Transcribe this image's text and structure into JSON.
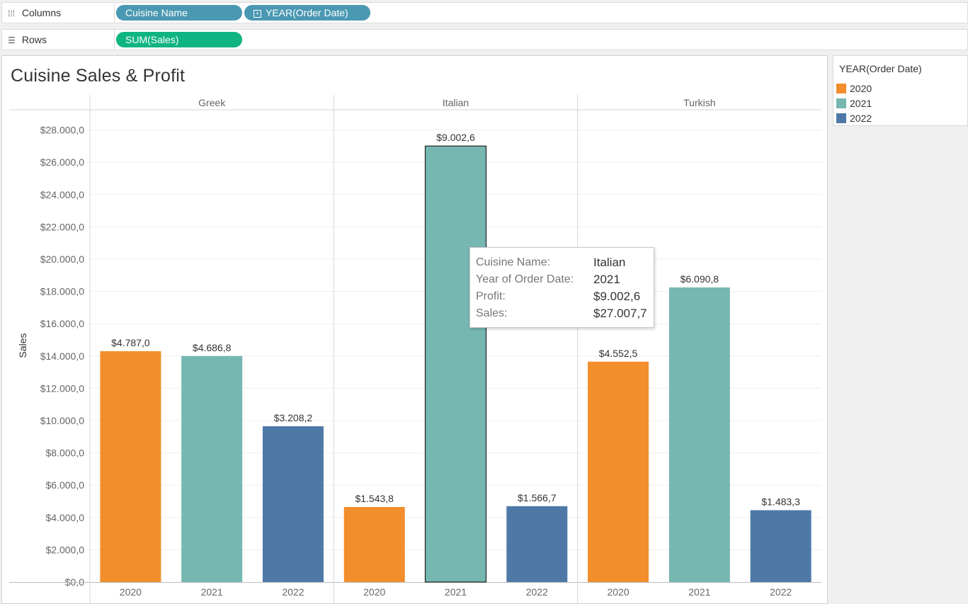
{
  "shelves": {
    "columns": {
      "label": "Columns",
      "pills": [
        {
          "label": "Cuisine Name",
          "color": "#4a98b2"
        },
        {
          "label": "YEAR(Order Date)",
          "color": "#4a98b2",
          "expandable": true
        }
      ]
    },
    "rows": {
      "label": "Rows",
      "pills": [
        {
          "label": "SUM(Sales)",
          "color": "#0fb482"
        }
      ]
    }
  },
  "chart_data": {
    "type": "bar",
    "title": "Cuisine Sales & Profit",
    "ylabel": "Sales",
    "xlabel": "",
    "ylim": [
      0,
      30000
    ],
    "y_ticks": [
      "$0,0",
      "$2.000,0",
      "$4.000,0",
      "$6.000,0",
      "$8.000,0",
      "$10.000,0",
      "$12.000,0",
      "$14.000,0",
      "$16.000,0",
      "$18.000,0",
      "$20.000,0",
      "$22.000,0",
      "$24.000,0",
      "$26.000,0",
      "$28.000,0"
    ],
    "y_tick_values": [
      0,
      2000,
      4000,
      6000,
      8000,
      10000,
      12000,
      14000,
      16000,
      18000,
      20000,
      22000,
      24000,
      26000,
      28000
    ],
    "grid": true,
    "legend_position": "right",
    "panes": [
      {
        "name": "Greek",
        "bars": [
          {
            "year": "2020",
            "sales": 14300,
            "label": "$4.787,0"
          },
          {
            "year": "2021",
            "sales": 14000,
            "label": "$4.686,8"
          },
          {
            "year": "2022",
            "sales": 9650,
            "label": "$3.208,2"
          }
        ]
      },
      {
        "name": "Italian",
        "bars": [
          {
            "year": "2020",
            "sales": 4650,
            "label": "$1.543,8"
          },
          {
            "year": "2021",
            "sales": 27007.7,
            "label": "$9.002,6",
            "selected": true
          },
          {
            "year": "2022",
            "sales": 4700,
            "label": "$1.566,7"
          }
        ]
      },
      {
        "name": "Turkish",
        "bars": [
          {
            "year": "2020",
            "sales": 13650,
            "label": "$4.552,5"
          },
          {
            "year": "2021",
            "sales": 18250,
            "label": "$6.090,8"
          },
          {
            "year": "2022",
            "sales": 4450,
            "label": "$1.483,3"
          }
        ]
      }
    ],
    "year_colors": {
      "2020": "#f28e2b",
      "2021": "#76b7b2",
      "2022": "#4e79a7"
    }
  },
  "legend": {
    "title": "YEAR(Order Date)",
    "items": [
      {
        "label": "2020",
        "color": "#f28e2b"
      },
      {
        "label": "2021",
        "color": "#76b7b2"
      },
      {
        "label": "2022",
        "color": "#4e79a7"
      }
    ]
  },
  "tooltip": {
    "rows": [
      {
        "key": "Cuisine Name:",
        "value": "Italian"
      },
      {
        "key": "Year of Order Date:",
        "value": "2021"
      },
      {
        "key": "Profit:",
        "value": "$9.002,6"
      },
      {
        "key": "Sales:",
        "value": "$27.007,7"
      }
    ]
  }
}
